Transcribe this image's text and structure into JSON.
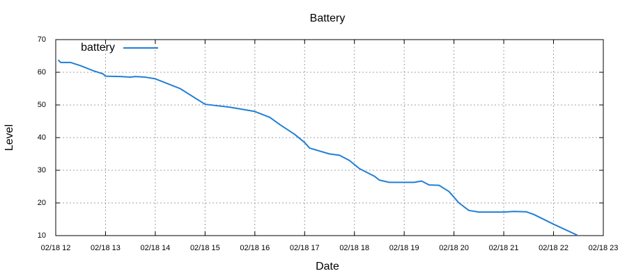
{
  "chart_data": {
    "type": "line",
    "title": "Battery",
    "x_label": "Date",
    "y_label": "Level",
    "x": [
      12.05,
      12.1,
      12.3,
      12.5,
      12.75,
      12.95,
      13.0,
      13.3,
      13.5,
      13.6,
      13.8,
      14.0,
      14.5,
      15.0,
      15.5,
      16.0,
      16.3,
      16.5,
      16.8,
      17.0,
      17.1,
      17.5,
      17.7,
      17.9,
      18.1,
      18.4,
      18.5,
      18.7,
      19.2,
      19.35,
      19.5,
      19.7,
      19.9,
      20.1,
      20.3,
      20.5,
      21.0,
      21.2,
      21.45,
      21.6,
      22.0,
      22.48
    ],
    "series": [
      {
        "name": "battery",
        "color": "#1f7fd6",
        "values": [
          63.8,
          63,
          63,
          62,
          60.5,
          59.5,
          58.8,
          58.7,
          58.5,
          58.7,
          58.5,
          58,
          55,
          50.2,
          49.3,
          48,
          46.2,
          44,
          41,
          38.5,
          36.8,
          35,
          34.6,
          33,
          30.5,
          28.2,
          27,
          26.3,
          26.3,
          26.7,
          25.5,
          25.4,
          23.5,
          20,
          17.7,
          17.2,
          17.2,
          17.4,
          17.3,
          16.5,
          13.5,
          10.1
        ]
      }
    ],
    "xlim": [
      12,
      23
    ],
    "xticks": [
      {
        "value": 12,
        "label": "02/18 12"
      },
      {
        "value": 13,
        "label": "02/18 13"
      },
      {
        "value": 14,
        "label": "02/18 14"
      },
      {
        "value": 15,
        "label": "02/18 15"
      },
      {
        "value": 16,
        "label": "02/18 16"
      },
      {
        "value": 17,
        "label": "02/18 17"
      },
      {
        "value": 18,
        "label": "02/18 18"
      },
      {
        "value": 19,
        "label": "02/18 19"
      },
      {
        "value": 20,
        "label": "02/18 20"
      },
      {
        "value": 21,
        "label": "02/18 21"
      },
      {
        "value": 22,
        "label": "02/18 22"
      },
      {
        "value": 23,
        "label": "02/18 23"
      }
    ],
    "ylim": [
      10,
      70
    ],
    "yticks": [
      10,
      20,
      30,
      40,
      50,
      60,
      70
    ],
    "grid": true,
    "legend": "top-left"
  }
}
